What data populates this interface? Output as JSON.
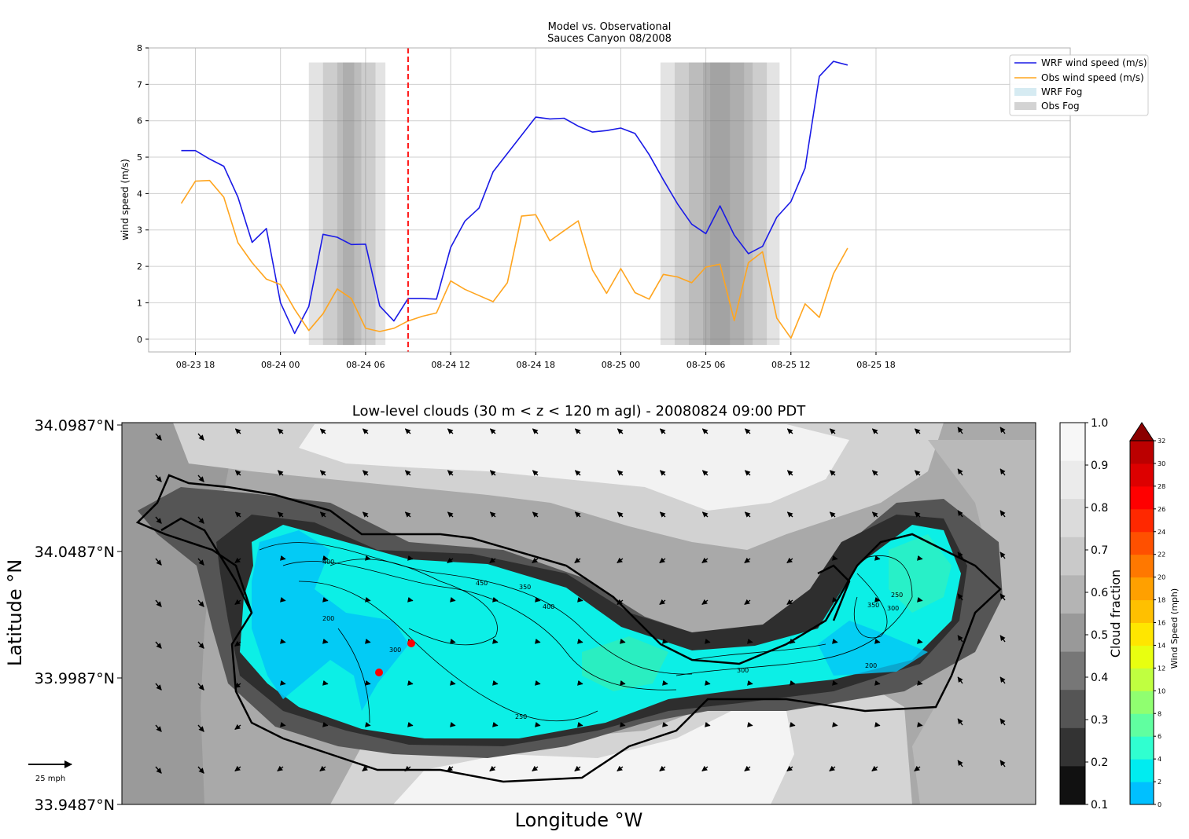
{
  "chart_data": [
    {
      "type": "line",
      "title": "Model vs. Observational",
      "subtitle": "Sauces Canyon 08/2008",
      "xlabel": "",
      "ylabel": "wind speed (m/s)",
      "ylim": [
        -0.35,
        8
      ],
      "yticks": [
        0,
        1,
        2,
        3,
        4,
        5,
        6,
        7,
        8
      ],
      "xlim_hours": [
        14.7,
        79.7
      ],
      "x_ticks": [
        {
          "hour": 18,
          "label": "08-23 18"
        },
        {
          "hour": 24,
          "label": "08-24 00"
        },
        {
          "hour": 30,
          "label": "08-24 06"
        },
        {
          "hour": 36,
          "label": "08-24 12"
        },
        {
          "hour": 42,
          "label": "08-24 18"
        },
        {
          "hour": 48,
          "label": "08-25 00"
        },
        {
          "hour": 54,
          "label": "08-25 06"
        },
        {
          "hour": 60,
          "label": "08-25 12"
        },
        {
          "hour": 66,
          "label": "08-25 18"
        }
      ],
      "x_hours": [
        17,
        18,
        19,
        20,
        21,
        22,
        23,
        24,
        25,
        26,
        27,
        28,
        29,
        30,
        31,
        32,
        33,
        34,
        35,
        36,
        37,
        38,
        39,
        40,
        41,
        42,
        43,
        44,
        45,
        46,
        47,
        48,
        49,
        50,
        51,
        52,
        53,
        54,
        55,
        56,
        57,
        58,
        59,
        60,
        61,
        62,
        63,
        64
      ],
      "series": [
        {
          "name": "WRF wind speed (m/s)",
          "color": "#1a1ae6",
          "values": [
            5.18,
            5.18,
            4.95,
            4.75,
            3.9,
            2.66,
            3.04,
            1.0,
            0.16,
            0.9,
            2.88,
            2.8,
            2.6,
            2.61,
            0.91,
            0.5,
            1.12,
            1.12,
            1.1,
            2.52,
            3.24,
            3.6,
            4.6,
            5.1,
            5.6,
            6.1,
            6.05,
            6.07,
            5.85,
            5.69,
            5.73,
            5.8,
            5.65,
            5.07,
            4.38,
            3.72,
            3.16,
            2.9,
            3.66,
            2.86,
            2.35,
            2.55,
            3.35,
            3.78,
            4.7,
            7.22,
            7.63,
            7.53
          ]
        },
        {
          "name": "Obs wind speed (m/s)",
          "color": "#ffa51f",
          "values": [
            3.73,
            4.34,
            4.36,
            3.9,
            2.65,
            2.1,
            1.65,
            1.5,
            0.82,
            0.24,
            0.7,
            1.38,
            1.12,
            0.3,
            0.21,
            0.3,
            0.5,
            0.63,
            0.72,
            1.6,
            1.37,
            1.2,
            1.03,
            1.55,
            3.38,
            3.42,
            2.7,
            2.98,
            3.25,
            1.9,
            1.26,
            1.94,
            1.28,
            1.1,
            1.78,
            1.71,
            1.55,
            1.98,
            2.06,
            0.51,
            2.1,
            2.4,
            0.58,
            0.03,
            0.97,
            0.6,
            1.8,
            2.5
          ]
        }
      ],
      "fog_legend": [
        {
          "name": "WRF Fog",
          "color": "#add8e6"
        },
        {
          "name": "Obs Fog",
          "color": "#c8c8c8"
        }
      ],
      "fog_bands_hours": [
        [
          26.0,
          31.4
        ],
        [
          27.0,
          30.7
        ],
        [
          28.0,
          29.7
        ],
        [
          28.4,
          29.2
        ],
        [
          50.8,
          59.2
        ],
        [
          51.8,
          58.3
        ],
        [
          52.8,
          57.3
        ],
        [
          53.8,
          56.7
        ],
        [
          54.3,
          55.7
        ]
      ],
      "fog_top": 7.6,
      "current_time_hour": 33,
      "current_time_color": "#ff2020",
      "grid": true,
      "legend_placement": "top-right"
    },
    {
      "type": "heatmap",
      "title": "Low-level clouds (30 m < z < 120 m agl) - 20080824 09:00 PDT",
      "xlabel": "Longitude $^\\circ$W",
      "ylabel": "Latitude $^\\circ$N",
      "y_ticks": [
        "34.0987°N",
        "34.0487°N",
        "33.9987°N",
        "33.9487°N"
      ],
      "ylim": [
        33.9487,
        34.0987
      ],
      "cloud_colorbar": {
        "label": "Cloud fraction",
        "ticks": [
          "1.0",
          "0.9",
          "0.8",
          "0.7",
          "0.6",
          "0.5",
          "0.4",
          "0.3",
          "0.2",
          "0.1"
        ],
        "colors": [
          "#111111",
          "#333333",
          "#555555",
          "#777777",
          "#999999",
          "#b4b4b4",
          "#c9c9c9",
          "#dbdbdb",
          "#ebebeb",
          "#f7f7f7"
        ]
      },
      "wind_colorbar": {
        "label": "Wind Speed (mph)",
        "ticks": [
          "32",
          "30",
          "28",
          "26",
          "24",
          "22",
          "20",
          "18",
          "16",
          "14",
          "12",
          "10",
          "8",
          "6",
          "4",
          "2",
          "0"
        ],
        "colors": [
          "#00c0ff",
          "#00ecf0",
          "#30ffd0",
          "#60ffa0",
          "#90ff70",
          "#c0ff40",
          "#e8ff10",
          "#ffe600",
          "#ffc000",
          "#ffa000",
          "#ff7800",
          "#ff5000",
          "#ff2800",
          "#ff0000",
          "#dd0000",
          "#bb0000"
        ],
        "extend_color": "#8b0000"
      },
      "contour_labels": [
        "400",
        "450",
        "350",
        "400",
        "200",
        "300",
        "250",
        "300",
        "350",
        "250",
        "300",
        "200"
      ],
      "quiver_key": "25 mph",
      "markers": [
        {
          "color": "#ff0000"
        },
        {
          "color": "#ff0000"
        }
      ]
    }
  ]
}
